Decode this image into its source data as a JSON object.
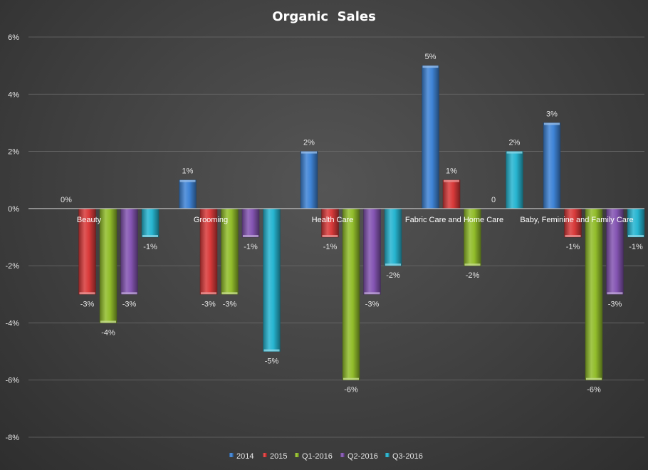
{
  "chart_data": {
    "type": "bar",
    "title": "Organic  Sales",
    "xlabel": "",
    "ylabel": "",
    "ylim": [
      -8,
      6
    ],
    "y_ticks": [
      -8,
      -6,
      -4,
      -2,
      0,
      2,
      4,
      6
    ],
    "y_tick_labels": [
      "-8%",
      "-6%",
      "-4%",
      "-2%",
      "0%",
      "2%",
      "4%",
      "6%"
    ],
    "grid": true,
    "legend_position": "bottom",
    "categories": [
      "Beauty",
      "Grooming",
      "Health Care",
      "Fabric Care and Home Care",
      "Baby, Feminine and Family Care"
    ],
    "series": [
      {
        "name": "2014",
        "color": "#3f84d6",
        "values": [
          0,
          1,
          2,
          5,
          3
        ],
        "labels": [
          "0%",
          "1%",
          "2%",
          "5%",
          "3%"
        ]
      },
      {
        "name": "2015",
        "color": "#d93a3a",
        "values": [
          -3,
          -3,
          -1,
          1,
          -1
        ],
        "labels": [
          "-3%",
          "-3%",
          "-1%",
          "1%",
          "-1%"
        ]
      },
      {
        "name": "Q1-2016",
        "color": "#92bd2b",
        "values": [
          -4,
          -3,
          -6,
          -2,
          -6
        ],
        "labels": [
          "-4%",
          "-3%",
          "-6%",
          "-2%",
          "-6%"
        ]
      },
      {
        "name": "Q2-2016",
        "color": "#8555b3",
        "values": [
          -3,
          -1,
          -3,
          0,
          -3
        ],
        "labels": [
          "-3%",
          "-1%",
          "-3%",
          "0",
          "-3%"
        ]
      },
      {
        "name": "Q3-2016",
        "color": "#27b5d1",
        "values": [
          -1,
          -5,
          -2,
          2,
          -1
        ],
        "labels": [
          "-1%",
          "-5%",
          "-2%",
          "2%",
          "-1%"
        ]
      }
    ]
  }
}
